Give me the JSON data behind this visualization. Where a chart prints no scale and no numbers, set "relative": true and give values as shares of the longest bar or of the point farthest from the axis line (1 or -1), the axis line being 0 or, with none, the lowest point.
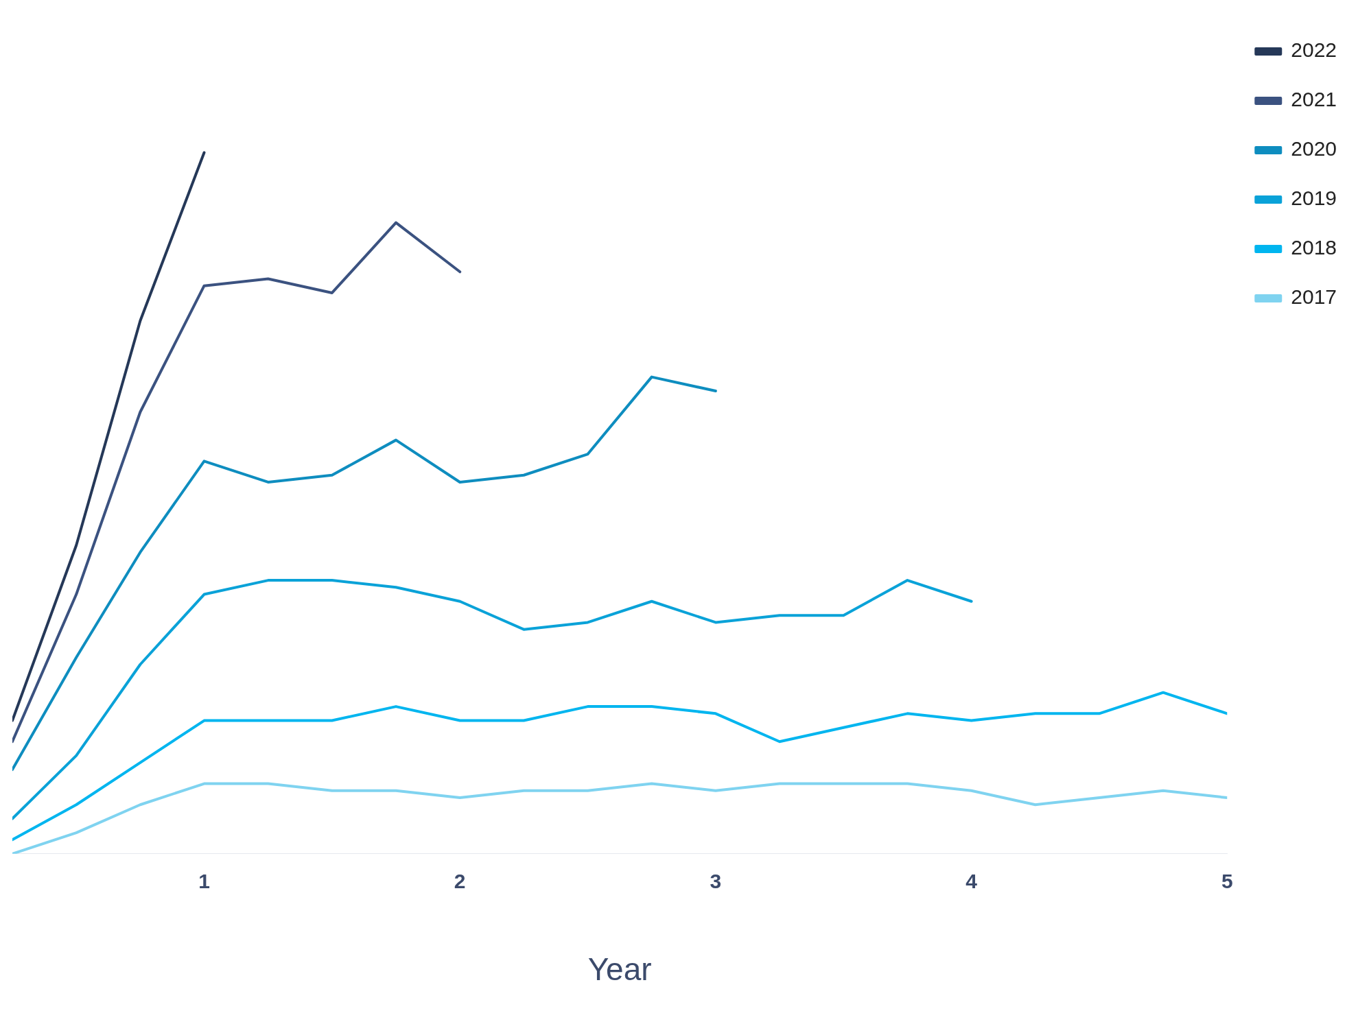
{
  "chart_data": {
    "type": "line",
    "relative": true,
    "xlabel": "Year",
    "xlim": [
      0.25,
      5
    ],
    "xticks": [
      1,
      2,
      3,
      4,
      5
    ],
    "grid": false,
    "legend": "top right",
    "marker": "none",
    "line_style": "solid",
    "series": [
      {
        "name": "2022",
        "color": "#253858",
        "x": [
          0.25,
          0.5,
          0.75,
          1
        ],
        "values": [
          0.19,
          0.44,
          0.76,
          1.0
        ]
      },
      {
        "name": "2021",
        "color": "#3b5280",
        "x": [
          0.25,
          0.5,
          0.75,
          1,
          1.25,
          1.5,
          1.75,
          2
        ],
        "values": [
          0.16,
          0.37,
          0.63,
          0.81,
          0.82,
          0.8,
          0.9,
          0.83
        ]
      },
      {
        "name": "2020",
        "color": "#0e8dbf",
        "x": [
          0.25,
          0.5,
          0.75,
          1,
          1.25,
          1.5,
          1.75,
          2,
          2.25,
          2.5,
          2.75,
          3
        ],
        "values": [
          0.12,
          0.28,
          0.43,
          0.56,
          0.53,
          0.54,
          0.59,
          0.53,
          0.54,
          0.57,
          0.68,
          0.66
        ]
      },
      {
        "name": "2019",
        "color": "#0aa2d8",
        "x": [
          0.25,
          0.5,
          0.75,
          1,
          1.25,
          1.5,
          1.75,
          2,
          2.25,
          2.5,
          2.75,
          3,
          3.25,
          3.5,
          3.75,
          4
        ],
        "values": [
          0.05,
          0.14,
          0.27,
          0.37,
          0.39,
          0.39,
          0.38,
          0.36,
          0.32,
          0.33,
          0.36,
          0.33,
          0.34,
          0.34,
          0.39,
          0.36
        ]
      },
      {
        "name": "2018",
        "color": "#00b5ef",
        "x": [
          0.25,
          0.5,
          0.75,
          1,
          1.25,
          1.5,
          1.75,
          2,
          2.25,
          2.5,
          2.75,
          3,
          3.25,
          3.5,
          3.75,
          4,
          4.25,
          4.5,
          4.75,
          5
        ],
        "values": [
          0.02,
          0.07,
          0.13,
          0.19,
          0.19,
          0.19,
          0.21,
          0.19,
          0.19,
          0.21,
          0.21,
          0.2,
          0.16,
          0.18,
          0.2,
          0.19,
          0.2,
          0.2,
          0.23,
          0.2
        ]
      },
      {
        "name": "2017",
        "color": "#7fd3f0",
        "x": [
          0.25,
          0.5,
          0.75,
          1,
          1.25,
          1.5,
          1.75,
          2,
          2.25,
          2.5,
          2.75,
          3,
          3.25,
          3.5,
          3.75,
          4,
          4.25,
          4.5,
          4.75,
          5
        ],
        "values": [
          0,
          0.03,
          0.07,
          0.1,
          0.1,
          0.09,
          0.09,
          0.08,
          0.09,
          0.09,
          0.1,
          0.09,
          0.1,
          0.1,
          0.1,
          0.09,
          0.07,
          0.08,
          0.09,
          0.08
        ]
      }
    ]
  }
}
